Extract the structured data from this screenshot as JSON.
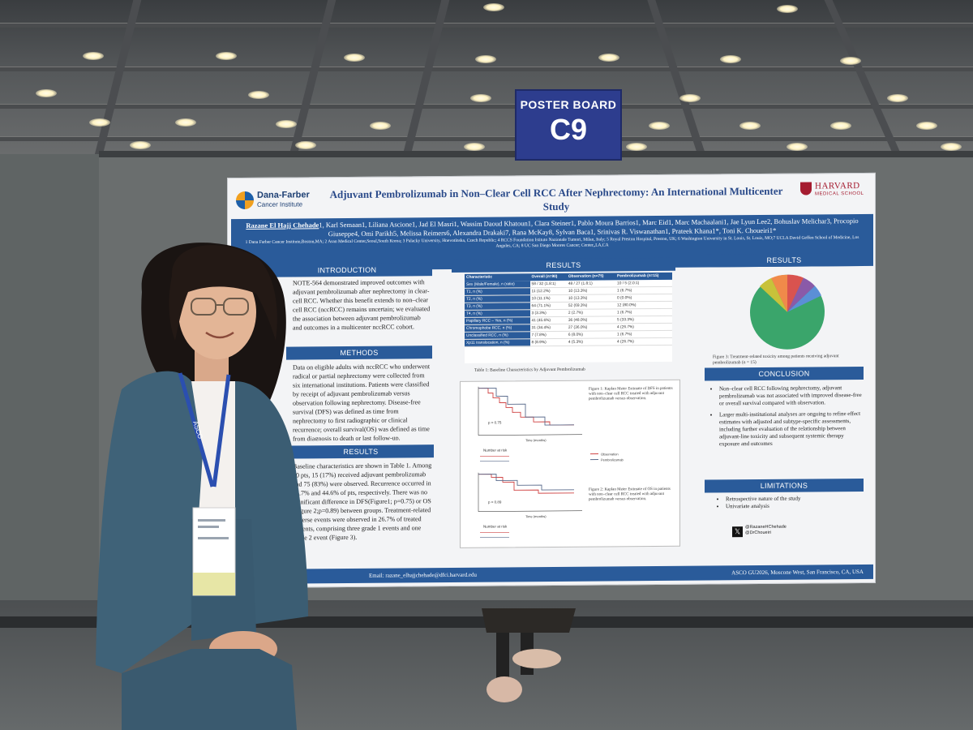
{
  "sign": {
    "line1": "POSTER BOARD",
    "line2": "C9"
  },
  "poster": {
    "logo_left": {
      "name": "Dana-Farber",
      "sub": "Cancer Institute"
    },
    "logo_right": {
      "name": "HARVARD",
      "sub": "MEDICAL SCHOOL"
    },
    "title": "Adjuvant Pembrolizumab in Non–Clear Cell RCC After Nephrectomy: An International Multicenter Study",
    "presenter": "Razane El Hajj Chehade",
    "authors": "1, Karl Semaan1, Liliana Ascione1, Jad El Masri1, Wassim Daoud Khatoun1, Clara Steiner1, Pablo Moura Barrios1, Marc Eid1, Marc Machaalani1, Jae Lyun Lee2, Bohuslav Melichar3, Procopio Giuseppe4, Omi Parikh5, Melissa Reimers6, Alexandra Drakaki7, Rana McKay8, Sylvan Baca1, Srinivas R. Viswanathan1, Prateek Khana1*, Toni K. Choueiri1*",
    "affiliations": "1 Dana Farber Cancer Institute,Boston,MA; 2 Asan Medical Center,Seoul,South Korea; 3 Palacky University, Hnevotínska, Czech Republic; 4 RCCS Foundation Istituto Nazionale Tumori, Milan, Italy; 5 Royal Preston Hospital, Preston, UK; 6 Washington University in St. Louis, St. Louis, MO;7 UCLA David Geffen School of Medicine, Los Angeles, CA; 8 UC San Diego Moores Cancer; Center,,LA,CA",
    "sections": {
      "intro": "INTRODUCTION",
      "methods": "METHODS",
      "results_left": "RESULTS",
      "results_mid": "RESULTS",
      "results_right": "RESULTS",
      "conclusion": "CONCLUSION",
      "limitations": "LIMITATIONS"
    },
    "intro_text": "NOTE-564 demonstrated improved outcomes with adjuvant pembrolizumab after nephrectomy in clear-cell RCC. Whether this benefit extends to non–clear cell RCC (nccRCC) remains uncertain; we evaluated the association between adjuvant pembrolizumab and outcomes in a multicenter nccRCC cohort.",
    "methods_text": "Data on eligible adults with nccRCC who underwent radical or partial nephrectomy were collected from six international institutions. Patients were classified by receipt of adjuvant pembrolizumab versus observation following nephrectomy. Disease-free survival (DFS) was defined as time from nephrectomy to first radiographic or clinical recurrence; overall survival(OS) was defined as time from diagnosis to death or last follow-up.",
    "results_text": "Baseline characteristics are shown in Table 1. Among 90 pts, 15 (17%) received adjuvant pembrolizumab and 75 (83%) were observed. Recurrence occurred in 46.7% and 44.6% of pts, respectively. There was no significant difference in DFS(Figure1; p=0.75) or OS (Figure 2;p=0.89) between groups. Treatment-related adverse events were observed in 26.7% of treated patients, comprising three grade 1 events and one grade 2 event (Figure 3).",
    "table": {
      "headers": [
        "Characteristic",
        "Overall (n=90)",
        "Observation (n=75)",
        "Pembrolizumab (n=15)"
      ],
      "rows": [
        [
          "Sex (Male/Female), n (ratio)",
          "58 / 32 (1.8:1)",
          "48 / 27 (1.8:1)",
          "10 / 5 (2.0:1)"
        ],
        [
          "T1, n (%)",
          "11 (12.2%)",
          "10 (13.3%)",
          "1 (6.7%)"
        ],
        [
          "T2, n (%)",
          "10 (11.1%)",
          "10 (13.3%)",
          "0 (0.0%)"
        ],
        [
          "T3, n (%)",
          "64 (71.1%)",
          "52 (69.3%)",
          "12 (80.0%)"
        ],
        [
          "T4, n (%)",
          "3 (3.3%)",
          "2 (2.7%)",
          "1 (6.7%)"
        ],
        [
          "Papillary RCC – Yes, n (%)",
          "41 (45.6%)",
          "36 (48.0%)",
          "5 (33.3%)"
        ],
        [
          "Chromophobe RCC, n (%)",
          "31 (34.4%)",
          "27 (36.0%)",
          "4 (26.7%)"
        ],
        [
          "Unclassified RCC, n (%)",
          "7 (7.8%)",
          "6 (8.0%)",
          "1 (6.7%)"
        ],
        [
          "Xp11 translocation, n (%)",
          "8 (8.9%)",
          "4 (5.3%)",
          "4 (26.7%)"
        ]
      ],
      "caption": "Table 1: Baseline Characteristics by Adjuvant Pembrolizumab"
    },
    "fig1_caption": "Figure 1: Kaplan Meier Estimate of DFS in patients with non–clear cell RCC treated with adjuvant pembrolizumab versus observation.",
    "fig2_caption": "Figure 2: Kaplan Meier Estimate of OS in patients with non–clear cell RCC treated with adjuvant pembrolizumab versus observation.",
    "fig1_p": "p = 0.75",
    "fig2_p": "p = 0.89",
    "km_xlabel": "Time (months)",
    "km_risk": "Number at risk",
    "legend_obs": "Observation",
    "legend_pem": "Pembrolizumab",
    "fig3_caption": "Figure 3: Treatment-related toxicity among patients receiving adjuvant pembrolizumab (n = 15)",
    "conclusion_items": [
      "Non–clear cell RCC following nephrectomy, adjuvant pembrolizumab was not associated with improved disease-free or overall survival compared with observation.",
      "Larger multi-institutional analyses are ongoing to refine effect estimates with adjusted and subtype-specific assessments, including further evaluation of the relationship between adjuvant-line toxicity and subsequent systemic therapy exposure and outcomes"
    ],
    "limitations_items": [
      "Retrospective nature of the study",
      "Univariate analysis"
    ],
    "handles": [
      "@RazaneHChehade",
      "@DrChoueiri"
    ],
    "footer_email": "Email: razane_elhajjchehade@dfci.harvard.edu",
    "footer_venue": "ASCO GU2026, Moscone West, San Francisco, CA, USA"
  },
  "badge": {
    "text": "ASCO"
  },
  "colors": {
    "poster_blue": "#2a5b9a",
    "sign_blue": "#2d3d8e",
    "pie_green": "#3aa56b"
  }
}
